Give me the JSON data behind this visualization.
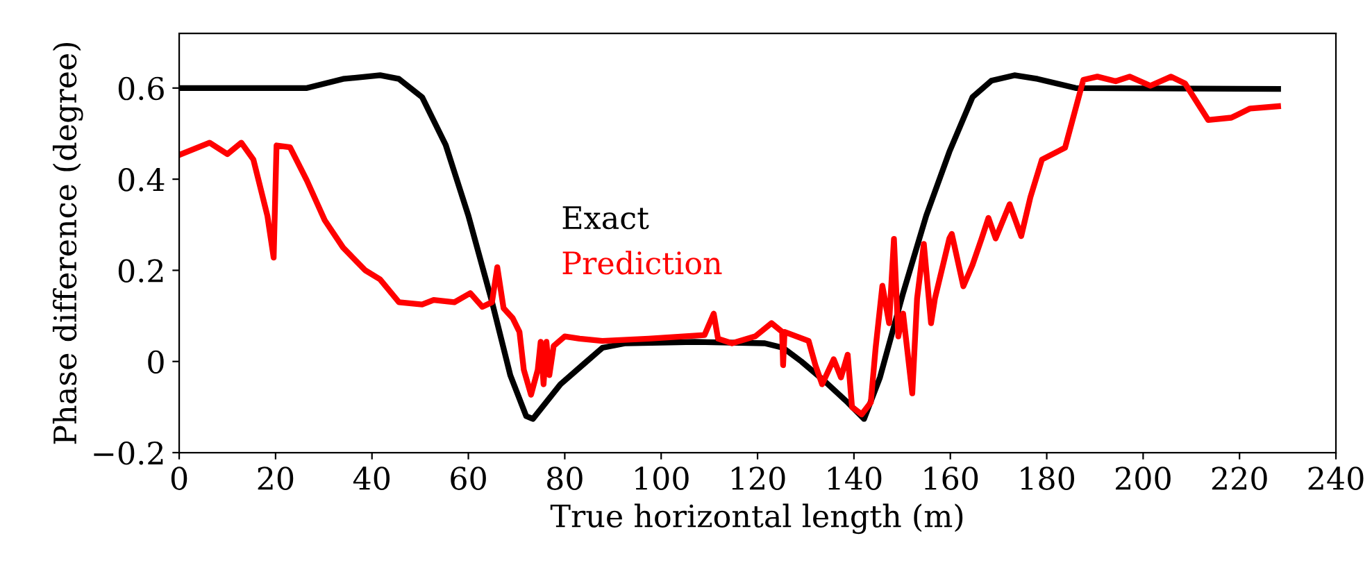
{
  "chart_data": {
    "type": "line",
    "xlabel": "True horizontal length (m)",
    "ylabel": "Phase difference (degree)",
    "xlim": [
      0,
      240
    ],
    "xticks": [
      0,
      20,
      40,
      60,
      80,
      100,
      120,
      140,
      160,
      180,
      200,
      220,
      240
    ],
    "ylim": [
      -0.2,
      0.72
    ],
    "yticks": [
      {
        "value": -0.2,
        "label": "−0.2"
      },
      0,
      0.2,
      0.4,
      0.6
    ],
    "grid": false,
    "legend": "center",
    "marker": "none",
    "line_style": "solid",
    "series": [
      {
        "name": "Exact",
        "color": "#000000",
        "x": [
          0,
          26.5,
          34,
          41.7,
          45.6,
          50.4,
          55.3,
          60,
          64.8,
          68.7,
          72,
          73.4,
          79.1,
          84,
          87.8,
          92.6,
          107,
          121.5,
          125.3,
          129.1,
          133.9,
          138.7,
          142.1,
          145.4,
          150.2,
          155,
          159.8,
          164.6,
          168.5,
          173.3,
          178.1,
          186,
          228
        ],
        "values": [
          0.6,
          0.6,
          0.62,
          0.628,
          0.62,
          0.58,
          0.475,
          0.32,
          0.135,
          -0.03,
          -0.12,
          -0.126,
          -0.05,
          -0.005,
          0.03,
          0.04,
          0.043,
          0.04,
          0.03,
          0.0,
          -0.043,
          -0.09,
          -0.126,
          -0.035,
          0.15,
          0.32,
          0.46,
          0.58,
          0.616,
          0.628,
          0.62,
          0.6,
          0.598
        ]
      },
      {
        "name": "Prediction",
        "color": "#ff0000",
        "x": [
          0,
          6.3,
          10,
          12.9,
          15.4,
          18.3,
          19.6,
          20.2,
          23,
          26.5,
          30.2,
          34,
          38.6,
          41.7,
          45.6,
          50.4,
          52.8,
          57.1,
          60.4,
          62.9,
          64.9,
          66,
          67.3,
          69.2,
          70.6,
          71.5,
          73,
          74.4,
          75,
          75.6,
          76.2,
          76.8,
          77.7,
          80,
          83.1,
          87.8,
          97.4,
          109,
          110.9,
          111.8,
          114.7,
          119.5,
          122.9,
          125.1,
          125.3,
          125.6,
          128.1,
          130.6,
          132,
          133.4,
          135.8,
          137.3,
          138.7,
          139.6,
          141.6,
          143.5,
          144.5,
          145.9,
          147.3,
          148.3,
          149.2,
          150.2,
          152.1,
          153.1,
          154.5,
          156,
          156.8,
          159.8,
          160.3,
          162.7,
          164.6,
          166.5,
          167.9,
          169.4,
          172.3,
          174.7,
          176.6,
          179,
          183.8,
          187.6,
          190.5,
          194.3,
          197.2,
          201.5,
          205.8,
          208.7,
          213.5,
          218.3,
          222.2,
          228
        ],
        "values": [
          0.453,
          0.48,
          0.455,
          0.48,
          0.443,
          0.32,
          0.228,
          0.474,
          0.47,
          0.397,
          0.31,
          0.25,
          0.2,
          0.18,
          0.13,
          0.125,
          0.135,
          0.13,
          0.15,
          0.12,
          0.13,
          0.207,
          0.117,
          0.095,
          0.065,
          -0.018,
          -0.073,
          -0.018,
          0.043,
          -0.05,
          0.043,
          -0.03,
          0.034,
          0.055,
          0.05,
          0.045,
          0.05,
          0.058,
          0.105,
          0.05,
          0.04,
          0.055,
          0.084,
          0.065,
          -0.008,
          0.065,
          0.055,
          0.045,
          -0.008,
          -0.05,
          0.005,
          -0.035,
          0.015,
          -0.1,
          -0.116,
          -0.09,
          0.03,
          0.166,
          0.084,
          0.269,
          0.055,
          0.105,
          -0.07,
          0.138,
          0.258,
          0.084,
          0.138,
          0.27,
          0.28,
          0.165,
          0.212,
          0.27,
          0.315,
          0.27,
          0.345,
          0.275,
          0.36,
          0.443,
          0.469,
          0.618,
          0.625,
          0.615,
          0.625,
          0.605,
          0.625,
          0.61,
          0.53,
          0.535,
          0.555,
          0.56
        ]
      }
    ]
  }
}
